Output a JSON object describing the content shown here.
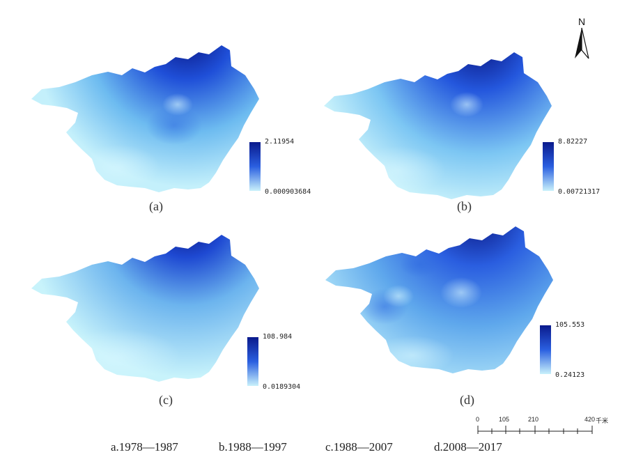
{
  "panels": [
    {
      "label": "(a)",
      "legend_max": "2.11954",
      "legend_min": "0.000903684"
    },
    {
      "label": "(b)",
      "legend_max": "8.82227",
      "legend_min": "0.00721317"
    },
    {
      "label": "(c)",
      "legend_max": "108.984",
      "legend_min": "0.0189304"
    },
    {
      "label": "(d)",
      "legend_max": "105.553",
      "legend_min": "0.24123"
    }
  ],
  "north_arrow": {
    "label": "N"
  },
  "scale_bar": {
    "ticks": [
      "0",
      "105",
      "210",
      "420"
    ],
    "unit": "千米"
  },
  "captions": [
    "a.1978—1987",
    "b.1988—1997",
    "c.1988—2007",
    "d.2008—2017"
  ],
  "colors": {
    "high": "#0a1a8c",
    "mid": "#2a5fe0",
    "low": "#c9f1fb"
  }
}
